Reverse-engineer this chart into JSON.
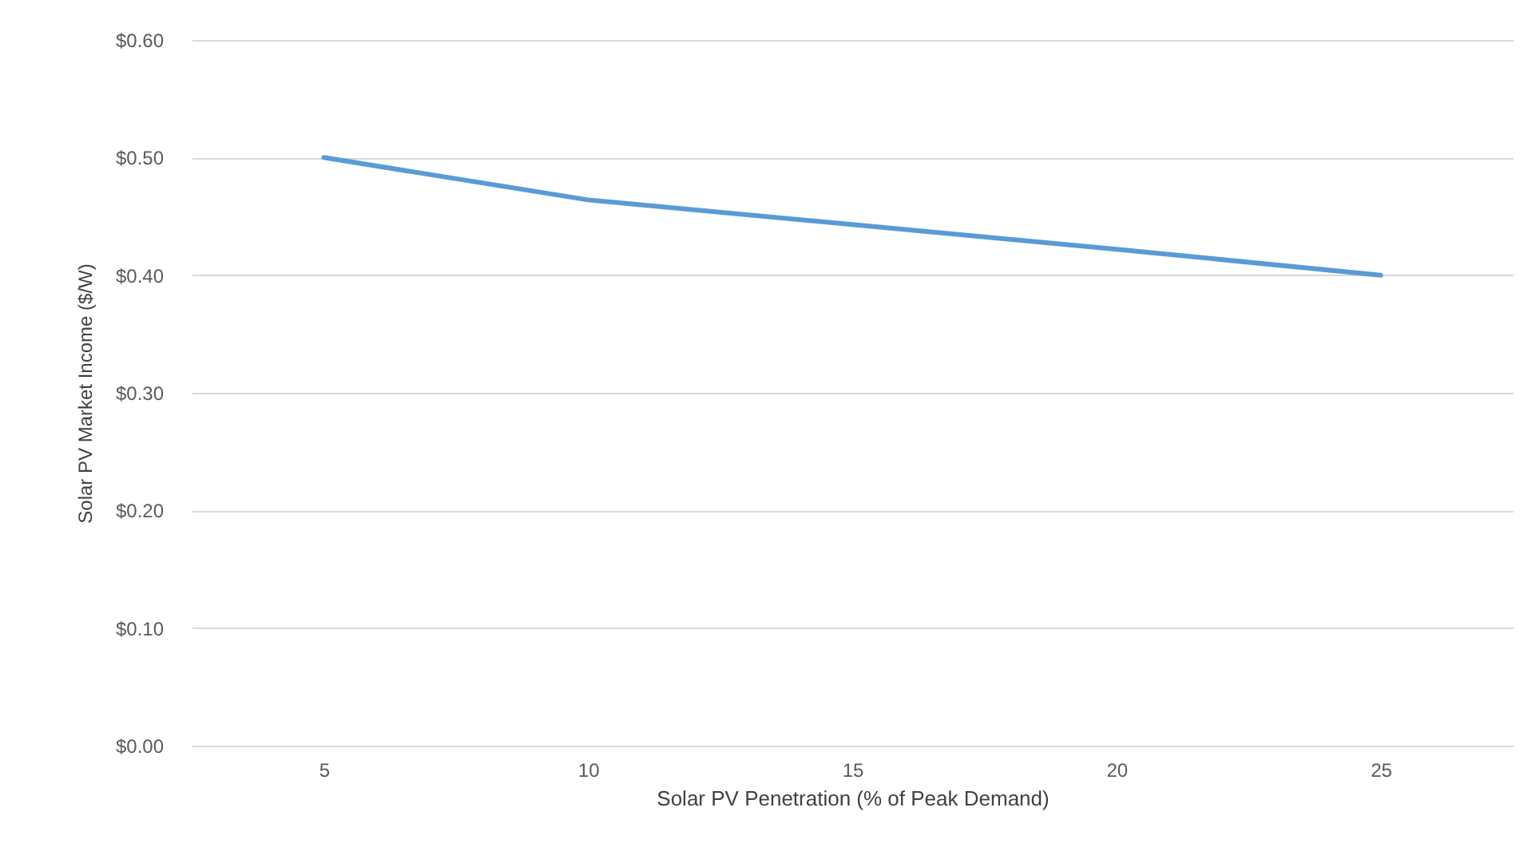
{
  "chart_data": {
    "type": "line",
    "xlabel": "Solar PV Penetration (% of Peak Demand)",
    "ylabel": "Solar PV Market Income ($/W)",
    "categories": [
      "5",
      "10",
      "15",
      "20",
      "25"
    ],
    "series": [
      {
        "color": "#5b9bd5",
        "values": [
          0.5,
          0.464,
          0.443,
          0.422,
          0.4
        ]
      }
    ],
    "ylim": [
      0,
      0.6
    ],
    "yticks": [
      {
        "value": 0,
        "label": "$0.00"
      },
      {
        "value": 0.1,
        "label": "$0.10"
      },
      {
        "value": 0.2,
        "label": "$0.20"
      },
      {
        "value": 0.3,
        "label": "$0.30"
      },
      {
        "value": 0.4,
        "label": "$0.40"
      },
      {
        "value": 0.5,
        "label": "$0.50"
      },
      {
        "value": 0.6,
        "label": "$0.60"
      }
    ],
    "grid": "y",
    "marker": "none",
    "line_style": "solid"
  }
}
